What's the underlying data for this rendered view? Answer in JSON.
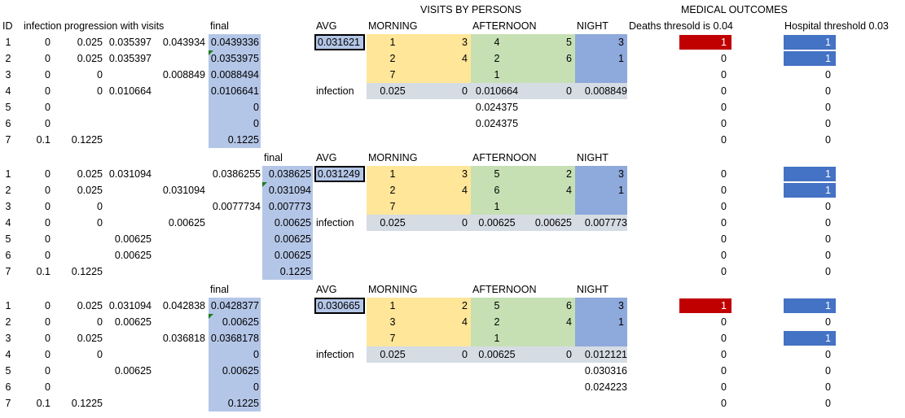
{
  "colors": {
    "final_fill": "#b4c6e7",
    "morning_fill": "#ffe699",
    "afternoon_fill": "#c6e0b4",
    "night_fill": "#8ea9db",
    "infection_row_fill": "#d6dce4",
    "death_fill": "#c00000",
    "hospital_fill": "#4472c4",
    "comment_marker": "#1f7a1f"
  },
  "titles": {
    "visits_by_persons": "VISITS BY PERSONS",
    "medical_outcomes": "MEDICAL OUTCOMES",
    "id": "ID",
    "progression": "infection progression with visits",
    "deaths_threshold": "Deaths thresold is 0.04",
    "hospital_threshold": "Hospital threshold 0.03"
  },
  "labels": {
    "final": "final",
    "avg": "AVG",
    "morning": "MORNING",
    "afternoon": "AFTERNOON",
    "night": "NIGHT",
    "infection": "infection"
  },
  "ids": [
    "1",
    "2",
    "3",
    "4",
    "5",
    "6",
    "7"
  ],
  "blocks": [
    {
      "progression_rows": [
        [
          "0",
          "0.025",
          "0.035397",
          "0.043934"
        ],
        [
          "0",
          "0.025",
          "0.035397",
          ""
        ],
        [
          "0",
          "0",
          "",
          "0.008849"
        ],
        [
          "0",
          "0",
          "0.010664",
          ""
        ],
        [
          "0",
          "",
          "",
          ""
        ],
        [
          "0",
          "",
          "",
          ""
        ],
        [
          "0.1",
          "0.1225",
          "",
          ""
        ]
      ],
      "pre_final": [
        "",
        "",
        "",
        "",
        "",
        "",
        ""
      ],
      "final": [
        "0.0439336",
        "0.0353975",
        "0.0088494",
        "0.0106641",
        "0",
        "0",
        "0.1225"
      ],
      "avg": "0.031621",
      "morning": [
        [
          "1",
          "3"
        ],
        [
          "2",
          "4"
        ],
        [
          "7",
          ""
        ]
      ],
      "afternoon": [
        [
          "4",
          "5"
        ],
        [
          "2",
          "6"
        ],
        [
          "1",
          ""
        ]
      ],
      "night": [
        [
          "3"
        ],
        [
          "1"
        ],
        [
          ""
        ]
      ],
      "infection": {
        "morning": [
          "0.025",
          "0"
        ],
        "afternoon": [
          "0.010664",
          "0"
        ],
        "night": "0.008849"
      },
      "night_extra": [
        "",
        ""
      ],
      "afternoon_extra": [
        "0.024375",
        "0.024375"
      ],
      "deaths": [
        "1",
        "0",
        "0",
        "0",
        "0",
        "0",
        "0"
      ],
      "hospital": [
        "1",
        "1",
        "0",
        "0",
        "0",
        "0",
        "0"
      ]
    },
    {
      "progression_rows": [
        [
          "0",
          "0.025",
          "0.031094",
          ""
        ],
        [
          "0",
          "0.025",
          "",
          "0.031094"
        ],
        [
          "0",
          "0",
          "",
          ""
        ],
        [
          "0",
          "0",
          "",
          "0.00625"
        ],
        [
          "0",
          "",
          "0.00625",
          ""
        ],
        [
          "0",
          "",
          "0.00625",
          ""
        ],
        [
          "0.1",
          "0.1225",
          "",
          ""
        ]
      ],
      "pre_final": [
        "0.0386255",
        "",
        "0.0077734",
        "",
        "",
        "",
        ""
      ],
      "final": [
        "0.038625",
        "0.031094",
        "0.007773",
        "0.00625",
        "0.00625",
        "0.00625",
        "0.1225"
      ],
      "avg": "0.031249",
      "morning": [
        [
          "1",
          "3"
        ],
        [
          "2",
          "4"
        ],
        [
          "7",
          ""
        ]
      ],
      "afternoon": [
        [
          "5",
          "2"
        ],
        [
          "6",
          "4"
        ],
        [
          "1",
          ""
        ]
      ],
      "night": [
        [
          "3"
        ],
        [
          "1"
        ],
        [
          ""
        ]
      ],
      "infection": {
        "morning": [
          "0.025",
          "0"
        ],
        "afternoon": [
          "0.00625",
          "0.00625"
        ],
        "night": "0.007773"
      },
      "night_extra": [
        "",
        ""
      ],
      "afternoon_extra": [
        "",
        ""
      ],
      "deaths": [
        "0",
        "0",
        "0",
        "0",
        "0",
        "0",
        "0"
      ],
      "hospital": [
        "1",
        "1",
        "0",
        "0",
        "0",
        "0",
        "0"
      ]
    },
    {
      "progression_rows": [
        [
          "0",
          "0.025",
          "0.031094",
          "0.042838"
        ],
        [
          "0",
          "0",
          "0.00625",
          ""
        ],
        [
          "0",
          "0.025",
          "",
          "0.036818"
        ],
        [
          "0",
          "0",
          "",
          ""
        ],
        [
          "0",
          "",
          "0.00625",
          ""
        ],
        [
          "0",
          "",
          "",
          ""
        ],
        [
          "0.1",
          "0.1225",
          "",
          ""
        ]
      ],
      "pre_final": [
        "",
        "",
        "",
        "",
        "",
        "",
        ""
      ],
      "final": [
        "0.0428377",
        "0.00625",
        "0.0368178",
        "0",
        "0.00625",
        "0",
        "0.1225"
      ],
      "avg": "0.030665",
      "morning": [
        [
          "1",
          "2"
        ],
        [
          "3",
          "4"
        ],
        [
          "7",
          ""
        ]
      ],
      "afternoon": [
        [
          "5",
          "6"
        ],
        [
          "2",
          "4"
        ],
        [
          "1",
          ""
        ]
      ],
      "night": [
        [
          "3"
        ],
        [
          "1"
        ],
        [
          ""
        ]
      ],
      "infection": {
        "morning": [
          "0.025",
          "0"
        ],
        "afternoon": [
          "0.00625",
          "0"
        ],
        "night": "0.012121"
      },
      "night_extra": [
        "0.030316",
        "0.024223"
      ],
      "afternoon_extra": [
        "",
        ""
      ],
      "deaths": [
        "1",
        "0",
        "0",
        "0",
        "0",
        "0",
        "0"
      ],
      "hospital": [
        "1",
        "0",
        "1",
        "0",
        "0",
        "0",
        "0"
      ]
    }
  ]
}
